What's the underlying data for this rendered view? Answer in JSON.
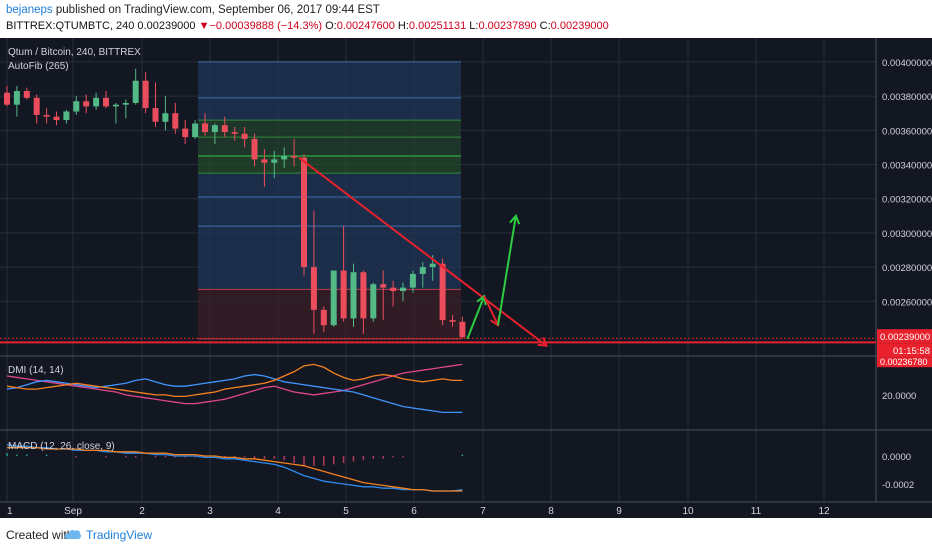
{
  "header": {
    "author": "bejaneps",
    "published_text": "published on TradingView.com, September 06, 2017 09:44 EST",
    "symbol": "BITTREX:QTUMBTC, 240",
    "last": "0.00239000",
    "arrow": "▼",
    "change": "−0.00039888 (−14.3%)",
    "o_label": "O:",
    "o": "0.00247600",
    "h_label": "H:",
    "h": "0.00251131",
    "l_label": "L:",
    "l": "0.00237890",
    "c_label": "C:",
    "c": "0.00239000"
  },
  "footer": {
    "created_with": "Created with",
    "brand": "TradingView"
  },
  "chart_data": {
    "type": "candlestick",
    "title": "Qtum / Bitcoin, 240, BITTREX",
    "indicator_label": "AutoFib (265)",
    "x_ticks": [
      "1",
      "Sep",
      "2",
      "3",
      "4",
      "5",
      "6",
      "7",
      "8",
      "9",
      "10",
      "11",
      "12"
    ],
    "y_ticks": [
      "0.00400000",
      "0.00380000",
      "0.00360000",
      "0.00340000",
      "0.00320000",
      "0.00300000",
      "0.00280000",
      "0.00260000"
    ],
    "ylim": [
      0.00228,
      0.00414
    ],
    "price_labels": {
      "current": "0.00239000",
      "countdown": "01:15:58",
      "low": "0.00236780"
    },
    "candles": [
      {
        "o": 0.00382,
        "h": 0.00386,
        "l": 0.00374,
        "c": 0.00375
      },
      {
        "o": 0.00375,
        "h": 0.00386,
        "l": 0.00368,
        "c": 0.00383
      },
      {
        "o": 0.00383,
        "h": 0.00385,
        "l": 0.00378,
        "c": 0.00379
      },
      {
        "o": 0.00379,
        "h": 0.00381,
        "l": 0.00364,
        "c": 0.00369
      },
      {
        "o": 0.00369,
        "h": 0.00373,
        "l": 0.00364,
        "c": 0.00368
      },
      {
        "o": 0.00368,
        "h": 0.00371,
        "l": 0.00363,
        "c": 0.00366
      },
      {
        "o": 0.00366,
        "h": 0.00372,
        "l": 0.00364,
        "c": 0.00371
      },
      {
        "o": 0.00371,
        "h": 0.0038,
        "l": 0.00369,
        "c": 0.00377
      },
      {
        "o": 0.00377,
        "h": 0.00381,
        "l": 0.0037,
        "c": 0.00374
      },
      {
        "o": 0.00374,
        "h": 0.00382,
        "l": 0.00372,
        "c": 0.00379
      },
      {
        "o": 0.00379,
        "h": 0.00383,
        "l": 0.00373,
        "c": 0.00374
      },
      {
        "o": 0.00374,
        "h": 0.00376,
        "l": 0.00364,
        "c": 0.00375
      },
      {
        "o": 0.00375,
        "h": 0.00378,
        "l": 0.00367,
        "c": 0.00376
      },
      {
        "o": 0.00376,
        "h": 0.00396,
        "l": 0.00375,
        "c": 0.00389
      },
      {
        "o": 0.00389,
        "h": 0.00394,
        "l": 0.0037,
        "c": 0.00373
      },
      {
        "o": 0.00373,
        "h": 0.00388,
        "l": 0.00362,
        "c": 0.00365
      },
      {
        "o": 0.00365,
        "h": 0.0038,
        "l": 0.0036,
        "c": 0.0037
      },
      {
        "o": 0.0037,
        "h": 0.00376,
        "l": 0.00358,
        "c": 0.00361
      },
      {
        "o": 0.00361,
        "h": 0.00366,
        "l": 0.00352,
        "c": 0.00356
      },
      {
        "o": 0.00356,
        "h": 0.00366,
        "l": 0.00355,
        "c": 0.00364
      },
      {
        "o": 0.00364,
        "h": 0.0037,
        "l": 0.00357,
        "c": 0.00359
      },
      {
        "o": 0.00359,
        "h": 0.00364,
        "l": 0.00352,
        "c": 0.00363
      },
      {
        "o": 0.00363,
        "h": 0.00368,
        "l": 0.00356,
        "c": 0.00359
      },
      {
        "o": 0.00359,
        "h": 0.00362,
        "l": 0.00354,
        "c": 0.00358
      },
      {
        "o": 0.00358,
        "h": 0.00362,
        "l": 0.0035,
        "c": 0.00355
      },
      {
        "o": 0.00355,
        "h": 0.00358,
        "l": 0.00339,
        "c": 0.00343
      },
      {
        "o": 0.00343,
        "h": 0.00349,
        "l": 0.00327,
        "c": 0.00341
      },
      {
        "o": 0.00341,
        "h": 0.00348,
        "l": 0.00332,
        "c": 0.00343
      },
      {
        "o": 0.00343,
        "h": 0.0035,
        "l": 0.00338,
        "c": 0.00345
      },
      {
        "o": 0.00345,
        "h": 0.00355,
        "l": 0.00339,
        "c": 0.00344
      },
      {
        "o": 0.00344,
        "h": 0.00346,
        "l": 0.00275,
        "c": 0.0028
      },
      {
        "o": 0.0028,
        "h": 0.00313,
        "l": 0.00241,
        "c": 0.00255
      },
      {
        "o": 0.00255,
        "h": 0.00257,
        "l": 0.00242,
        "c": 0.00246
      },
      {
        "o": 0.00246,
        "h": 0.00278,
        "l": 0.00245,
        "c": 0.00278
      },
      {
        "o": 0.00278,
        "h": 0.00304,
        "l": 0.00248,
        "c": 0.0025
      },
      {
        "o": 0.0025,
        "h": 0.00282,
        "l": 0.00245,
        "c": 0.00277
      },
      {
        "o": 0.00277,
        "h": 0.00278,
        "l": 0.00241,
        "c": 0.0025
      },
      {
        "o": 0.0025,
        "h": 0.00271,
        "l": 0.00248,
        "c": 0.0027
      },
      {
        "o": 0.0027,
        "h": 0.00278,
        "l": 0.00249,
        "c": 0.00268
      },
      {
        "o": 0.00268,
        "h": 0.00272,
        "l": 0.00257,
        "c": 0.00266
      },
      {
        "o": 0.00266,
        "h": 0.00271,
        "l": 0.0026,
        "c": 0.00268
      },
      {
        "o": 0.00268,
        "h": 0.00278,
        "l": 0.00265,
        "c": 0.00276
      },
      {
        "o": 0.00276,
        "h": 0.00283,
        "l": 0.00268,
        "c": 0.0028
      },
      {
        "o": 0.0028,
        "h": 0.00287,
        "l": 0.00272,
        "c": 0.00282
      },
      {
        "o": 0.00282,
        "h": 0.00285,
        "l": 0.00246,
        "c": 0.00249
      },
      {
        "o": 0.00249,
        "h": 0.00252,
        "l": 0.00245,
        "c": 0.00248
      },
      {
        "o": 0.00248,
        "h": 0.00251,
        "l": 0.00238,
        "c": 0.00239
      }
    ],
    "fib_levels": [
      0.004,
      0.00379,
      0.00366,
      0.00356,
      0.00345,
      0.00335,
      0.00321,
      0.00304,
      0.00267,
      0.00238
    ],
    "support_line": 0.00236,
    "trendline": {
      "from": {
        "i": 29.5,
        "y": 0.00344
      },
      "to": {
        "i": 54.5,
        "y": 0.00234
      }
    },
    "arrows": [
      {
        "from": {
          "i": 46.5,
          "y": 0.00238
        },
        "to": {
          "i": 48.2,
          "y": 0.00263
        },
        "color": "#2ecc40"
      },
      {
        "from": {
          "i": 48.2,
          "y": 0.00263
        },
        "to": {
          "i": 49.6,
          "y": 0.00246
        },
        "color": "#e8212c"
      },
      {
        "from": {
          "i": 49.6,
          "y": 0.00246
        },
        "to": {
          "i": 51.4,
          "y": 0.0031
        },
        "color": "#2ecc40"
      }
    ],
    "dmi": {
      "label": "DMI (14, 14)",
      "y_tick": "20.0000",
      "adx": [
        33,
        32,
        31,
        30,
        29,
        28,
        27,
        26,
        25,
        24,
        23,
        22,
        20,
        19,
        18,
        17,
        16,
        15,
        14,
        14,
        15,
        16,
        17,
        19,
        21,
        23,
        25,
        26,
        24,
        22,
        21,
        20,
        21,
        22,
        23,
        25,
        27,
        29,
        31,
        33,
        35,
        36,
        37,
        38,
        39,
        40,
        41
      ],
      "plus_di": [
        24,
        25,
        27,
        29,
        30,
        29,
        28,
        27,
        26,
        25,
        26,
        27,
        28,
        30,
        31,
        29,
        27,
        26,
        26,
        27,
        28,
        29,
        30,
        31,
        33,
        34,
        33,
        31,
        29,
        28,
        27,
        26,
        25,
        24,
        23,
        22,
        20,
        18,
        16,
        14,
        12,
        11,
        10,
        9,
        8,
        8,
        8
      ],
      "minus_di": [
        26,
        25,
        24,
        24,
        25,
        26,
        27,
        28,
        27,
        26,
        25,
        24,
        23,
        22,
        21,
        20,
        20,
        19,
        19,
        20,
        21,
        22,
        24,
        25,
        26,
        27,
        28,
        30,
        33,
        36,
        40,
        41,
        39,
        35,
        32,
        30,
        31,
        33,
        34,
        33,
        31,
        30,
        29,
        30,
        31,
        30,
        30
      ]
    },
    "macd": {
      "label": "MACD (12, 26, close, 9)",
      "y_ticks": [
        "0.0000",
        "-0.0002"
      ],
      "macd": [
        8e-05,
        7e-05,
        7e-05,
        6e-05,
        6e-05,
        5e-05,
        5e-05,
        4e-05,
        4e-05,
        4e-05,
        3e-05,
        3e-05,
        2e-05,
        2e-05,
        2e-05,
        1e-05,
        1e-05,
        0.0,
        0.0,
        0.0,
        -1e-05,
        -1e-05,
        -2e-05,
        -2e-05,
        -3e-05,
        -4e-05,
        -5e-05,
        -6e-05,
        -8e-05,
        -0.00011,
        -0.00014,
        -0.00016,
        -0.00018,
        -0.00019,
        -0.0002,
        -0.00021,
        -0.00022,
        -0.00022,
        -0.00023,
        -0.00023,
        -0.00024,
        -0.00024,
        -0.00024,
        -0.00025,
        -0.00025,
        -0.00025,
        -0.00024
      ],
      "signal": [
        6e-05,
        6e-05,
        6e-05,
        6e-05,
        5e-05,
        5e-05,
        5e-05,
        5e-05,
        4e-05,
        4e-05,
        4e-05,
        3e-05,
        3e-05,
        3e-05,
        2e-05,
        2e-05,
        2e-05,
        1e-05,
        1e-05,
        1e-05,
        0.0,
        0.0,
        -1e-05,
        -1e-05,
        -2e-05,
        -2e-05,
        -3e-05,
        -4e-05,
        -5e-05,
        -6e-05,
        -7e-05,
        -9e-05,
        -0.00011,
        -0.00013,
        -0.00015,
        -0.00017,
        -0.00019,
        -0.0002,
        -0.00021,
        -0.00022,
        -0.00023,
        -0.00024,
        -0.00024,
        -0.00025,
        -0.00025,
        -0.00025,
        -0.00025
      ]
    },
    "colors": {
      "bg": "#131722",
      "grid": "#2a2e39",
      "up": "#53b987",
      "down": "#eb4d5c",
      "adx": "#e0468a",
      "plus": "#4096ff",
      "minus": "#f5821f",
      "macd": "#2e8bf0",
      "signal": "#f5821f"
    }
  }
}
